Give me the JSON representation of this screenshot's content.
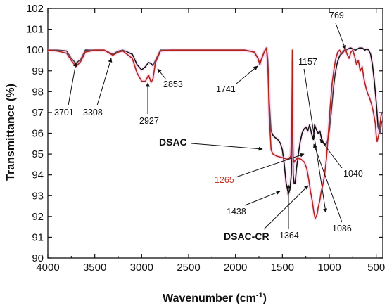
{
  "chart_data": {
    "type": "line",
    "title": "",
    "xlabel": "Wavenumber (cm",
    "xlabel_sup": "-1",
    "xlabel_close": ")",
    "ylabel": "Transmittance (%)",
    "xlim": [
      4000,
      430
    ],
    "ylim": [
      90,
      102
    ],
    "x_reversed": true,
    "x_ticks": [
      "4000",
      "3500",
      "3000",
      "2500",
      "2000",
      "1500",
      "1000",
      "500"
    ],
    "x_tick_values": [
      4000,
      3500,
      3000,
      2500,
      2000,
      1500,
      1000,
      500
    ],
    "y_ticks": [
      "90",
      "91",
      "92",
      "93",
      "94",
      "95",
      "96",
      "97",
      "98",
      "99",
      "100",
      "101",
      "102"
    ],
    "y_tick_values": [
      90,
      91,
      92,
      93,
      94,
      95,
      96,
      97,
      98,
      99,
      100,
      101,
      102
    ],
    "grid": false,
    "series": [
      {
        "name": "DSAC",
        "color": "#111111",
        "x": [
          4000,
          3900,
          3800,
          3750,
          3701,
          3650,
          3600,
          3500,
          3400,
          3308,
          3250,
          3200,
          3100,
          3050,
          3000,
          2960,
          2927,
          2900,
          2880,
          2853,
          2800,
          2700,
          2500,
          2300,
          2100,
          2000,
          1900,
          1800,
          1760,
          1741,
          1720,
          1690,
          1670,
          1655,
          1640,
          1620,
          1600,
          1580,
          1560,
          1540,
          1520,
          1500,
          1480,
          1460,
          1440,
          1438,
          1420,
          1405,
          1398,
          1394,
          1390,
          1385,
          1375,
          1364,
          1350,
          1330,
          1310,
          1290,
          1270,
          1250,
          1230,
          1210,
          1190,
          1170,
          1157,
          1140,
          1120,
          1100,
          1086,
          1070,
          1055,
          1040,
          1020,
          1000,
          980,
          960,
          940,
          920,
          900,
          880,
          860,
          840,
          820,
          800,
          780,
          769,
          750,
          720,
          700,
          680,
          650,
          620,
          600,
          580,
          560,
          540,
          520,
          500,
          480,
          460,
          440
        ],
        "y": [
          100.0,
          100.0,
          99.95,
          99.6,
          99.35,
          99.55,
          100.0,
          100.0,
          100.0,
          99.8,
          99.95,
          100.0,
          99.8,
          99.3,
          99.05,
          99.2,
          99.4,
          99.35,
          99.25,
          99.5,
          100.0,
          100.0,
          100.0,
          100.0,
          100.0,
          100.0,
          100.0,
          99.9,
          99.6,
          99.35,
          99.6,
          99.95,
          100.1,
          99.5,
          97.5,
          96.1,
          95.9,
          95.8,
          95.75,
          95.65,
          95.5,
          95.2,
          94.5,
          93.6,
          93.2,
          93.05,
          93.3,
          94.0,
          96.5,
          99.5,
          96.0,
          94.0,
          93.6,
          93.6,
          94.3,
          95.0,
          95.6,
          96.0,
          96.2,
          96.3,
          96.1,
          96.4,
          96.0,
          95.7,
          96.4,
          96.2,
          96.0,
          96.1,
          95.8,
          95.6,
          95.5,
          95.45,
          95.6,
          96.1,
          97.0,
          98.0,
          98.8,
          99.3,
          99.6,
          99.8,
          99.9,
          100.0,
          100.0,
          100.05,
          100.1,
          100.1,
          100.05,
          100.0,
          100.05,
          100.1,
          100.1,
          100.0,
          100.05,
          100.0,
          99.8,
          99.3,
          98.5,
          97.5,
          96.3,
          96.0,
          96.6
        ]
      },
      {
        "name": "DSAC-CR",
        "color": "#b0241a",
        "x": [
          4000,
          3900,
          3800,
          3750,
          3701,
          3650,
          3600,
          3500,
          3400,
          3308,
          3250,
          3200,
          3100,
          3050,
          3000,
          2960,
          2927,
          2900,
          2880,
          2853,
          2800,
          2700,
          2500,
          2300,
          2100,
          2000,
          1900,
          1800,
          1760,
          1741,
          1720,
          1690,
          1670,
          1655,
          1640,
          1620,
          1600,
          1560,
          1520,
          1480,
          1450,
          1430,
          1410,
          1398,
          1394,
          1390,
          1385,
          1375,
          1364,
          1340,
          1300,
          1265,
          1240,
          1220,
          1200,
          1180,
          1165,
          1150,
          1140,
          1130,
          1120,
          1100,
          1086,
          1070,
          1050,
          1030,
          1010,
          990,
          970,
          950,
          930,
          910,
          890,
          870,
          850,
          830,
          810,
          790,
          769,
          750,
          730,
          710,
          690,
          670,
          650,
          630,
          610,
          590,
          570,
          550,
          530,
          510,
          500,
          490,
          470,
          450,
          440
        ],
        "y": [
          100.0,
          99.95,
          99.85,
          99.5,
          99.2,
          99.45,
          99.9,
          100.0,
          100.0,
          99.75,
          99.9,
          99.95,
          99.6,
          98.9,
          98.5,
          98.5,
          98.8,
          98.45,
          98.6,
          99.4,
          99.95,
          100.0,
          100.0,
          100.0,
          100.0,
          100.0,
          100.0,
          99.9,
          99.6,
          99.3,
          99.6,
          99.95,
          100.1,
          99.2,
          96.8,
          95.2,
          95.0,
          94.9,
          94.85,
          94.8,
          94.75,
          94.8,
          94.9,
          96.5,
          100.0,
          96.0,
          94.8,
          94.6,
          94.7,
          94.8,
          94.75,
          94.6,
          94.3,
          93.8,
          93.2,
          92.7,
          92.2,
          91.9,
          92.0,
          92.1,
          92.4,
          92.8,
          93.2,
          93.5,
          94.0,
          94.8,
          96.0,
          97.3,
          98.4,
          99.1,
          99.6,
          99.9,
          100.0,
          99.8,
          99.9,
          100.05,
          99.8,
          99.6,
          99.9,
          100.0,
          99.7,
          99.3,
          99.5,
          99.0,
          99.2,
          98.6,
          98.2,
          97.9,
          97.7,
          97.4,
          97.0,
          96.5,
          95.9,
          95.6,
          96.0,
          96.8,
          97.0
        ]
      }
    ],
    "annotations": [
      {
        "text": "3701",
        "style": "normal"
      },
      {
        "text": "3308",
        "style": "normal"
      },
      {
        "text": "2927",
        "style": "normal"
      },
      {
        "text": "2853",
        "style": "normal"
      },
      {
        "text": "1741",
        "style": "normal"
      },
      {
        "text": "769",
        "style": "normal"
      },
      {
        "text": "1157",
        "style": "normal"
      },
      {
        "text": "DSAC",
        "style": "bold"
      },
      {
        "text": "1265",
        "style": "red"
      },
      {
        "text": "1040",
        "style": "normal"
      },
      {
        "text": "1438",
        "style": "normal"
      },
      {
        "text": "1364",
        "style": "normal"
      },
      {
        "text": "1086",
        "style": "normal"
      },
      {
        "text": "DSAC-CR",
        "style": "bold"
      }
    ]
  }
}
